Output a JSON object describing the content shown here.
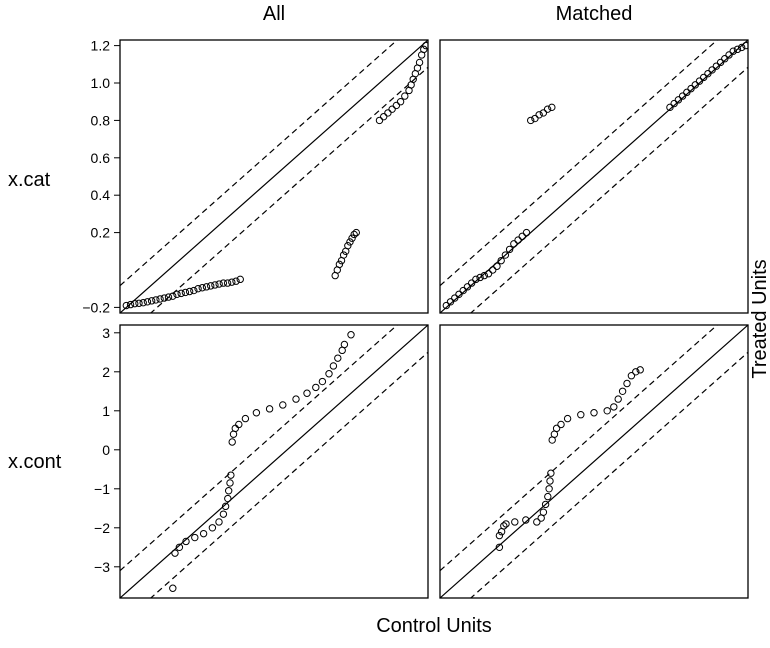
{
  "chart_data": {
    "type": "scatter",
    "column_titles": [
      "All",
      "Matched"
    ],
    "row_labels": [
      "x.cat",
      "x.cont"
    ],
    "xlabel": "Control Units",
    "ylabel": "Treated Units",
    "reference_lines": {
      "solid": "y = x",
      "dashed": "y = x ± 0.1·range"
    },
    "marker": "open-circle",
    "panels": [
      {
        "row": "x.cat",
        "column": "All",
        "range": [
          -0.23,
          1.23
        ],
        "ticks": [
          -0.2,
          0.2,
          0.4,
          0.6,
          0.8,
          1.0,
          1.2
        ],
        "tick_labels": [
          "−0.2",
          "0.2",
          "0.4",
          "0.6",
          "0.8",
          "1.0",
          "1.2"
        ],
        "points": [
          [
            -0.2,
            -0.19
          ],
          [
            -0.18,
            -0.185
          ],
          [
            -0.16,
            -0.18
          ],
          [
            -0.14,
            -0.178
          ],
          [
            -0.12,
            -0.175
          ],
          [
            -0.1,
            -0.17
          ],
          [
            -0.08,
            -0.165
          ],
          [
            -0.06,
            -0.16
          ],
          [
            -0.04,
            -0.155
          ],
          [
            -0.02,
            -0.15
          ],
          [
            0.0,
            -0.145
          ],
          [
            0.02,
            -0.14
          ],
          [
            0.04,
            -0.13
          ],
          [
            0.06,
            -0.125
          ],
          [
            0.08,
            -0.12
          ],
          [
            0.1,
            -0.115
          ],
          [
            0.12,
            -0.11
          ],
          [
            0.14,
            -0.1
          ],
          [
            0.16,
            -0.095
          ],
          [
            0.18,
            -0.09
          ],
          [
            0.2,
            -0.085
          ],
          [
            0.22,
            -0.08
          ],
          [
            0.24,
            -0.075
          ],
          [
            0.26,
            -0.07
          ],
          [
            0.28,
            -0.07
          ],
          [
            0.3,
            -0.065
          ],
          [
            0.32,
            -0.06
          ],
          [
            0.34,
            -0.05
          ],
          [
            0.79,
            -0.03
          ],
          [
            0.8,
            0.0
          ],
          [
            0.81,
            0.03
          ],
          [
            0.82,
            0.05
          ],
          [
            0.83,
            0.08
          ],
          [
            0.84,
            0.1
          ],
          [
            0.85,
            0.13
          ],
          [
            0.86,
            0.15
          ],
          [
            0.87,
            0.17
          ],
          [
            0.88,
            0.19
          ],
          [
            0.89,
            0.2
          ],
          [
            1.0,
            0.8
          ],
          [
            1.02,
            0.82
          ],
          [
            1.04,
            0.84
          ],
          [
            1.06,
            0.86
          ],
          [
            1.08,
            0.88
          ],
          [
            1.1,
            0.9
          ],
          [
            1.12,
            0.93
          ],
          [
            1.14,
            0.96
          ],
          [
            1.15,
            0.99
          ],
          [
            1.16,
            1.02
          ],
          [
            1.17,
            1.05
          ],
          [
            1.18,
            1.08
          ],
          [
            1.19,
            1.11
          ],
          [
            1.2,
            1.15
          ],
          [
            1.21,
            1.18
          ],
          [
            1.22,
            1.2
          ]
        ]
      },
      {
        "row": "x.cat",
        "column": "Matched",
        "range": [
          -0.23,
          1.23
        ],
        "ticks": [
          -0.2,
          0.2,
          0.4,
          0.6,
          0.8,
          1.0,
          1.2
        ],
        "tick_labels": [
          "−0.2",
          "0.2",
          "0.4",
          "0.6",
          "0.8",
          "1.0",
          "1.2"
        ],
        "points": [
          [
            -0.2,
            -0.19
          ],
          [
            -0.18,
            -0.17
          ],
          [
            -0.16,
            -0.15
          ],
          [
            -0.14,
            -0.13
          ],
          [
            -0.12,
            -0.11
          ],
          [
            -0.1,
            -0.09
          ],
          [
            -0.08,
            -0.07
          ],
          [
            -0.06,
            -0.05
          ],
          [
            -0.04,
            -0.04
          ],
          [
            -0.02,
            -0.03
          ],
          [
            0.0,
            -0.02
          ],
          [
            0.02,
            0.0
          ],
          [
            0.04,
            0.02
          ],
          [
            0.06,
            0.05
          ],
          [
            0.08,
            0.08
          ],
          [
            0.1,
            0.11
          ],
          [
            0.12,
            0.14
          ],
          [
            0.14,
            0.16
          ],
          [
            0.16,
            0.18
          ],
          [
            0.18,
            0.2
          ],
          [
            0.2,
            0.8
          ],
          [
            0.22,
            0.81
          ],
          [
            0.24,
            0.83
          ],
          [
            0.26,
            0.84
          ],
          [
            0.28,
            0.86
          ],
          [
            0.3,
            0.87
          ],
          [
            0.86,
            0.87
          ],
          [
            0.88,
            0.89
          ],
          [
            0.9,
            0.91
          ],
          [
            0.92,
            0.93
          ],
          [
            0.94,
            0.95
          ],
          [
            0.96,
            0.97
          ],
          [
            0.98,
            0.99
          ],
          [
            1.0,
            1.01
          ],
          [
            1.02,
            1.03
          ],
          [
            1.04,
            1.05
          ],
          [
            1.06,
            1.07
          ],
          [
            1.08,
            1.09
          ],
          [
            1.1,
            1.11
          ],
          [
            1.12,
            1.13
          ],
          [
            1.14,
            1.15
          ],
          [
            1.16,
            1.17
          ],
          [
            1.18,
            1.18
          ],
          [
            1.2,
            1.19
          ],
          [
            1.22,
            1.2
          ]
        ]
      },
      {
        "row": "x.cont",
        "column": "All",
        "range": [
          -3.8,
          3.2
        ],
        "ticks": [
          -3,
          -2,
          -1,
          0,
          1,
          2,
          3
        ],
        "tick_labels": [
          "−3",
          "−2",
          "−1",
          "0",
          "1",
          "2",
          "3"
        ],
        "points": [
          [
            -2.6,
            -3.55
          ],
          [
            -2.55,
            -2.65
          ],
          [
            -2.45,
            -2.5
          ],
          [
            -2.3,
            -2.35
          ],
          [
            -2.1,
            -2.25
          ],
          [
            -1.9,
            -2.15
          ],
          [
            -1.7,
            -2.0
          ],
          [
            -1.55,
            -1.85
          ],
          [
            -1.45,
            -1.65
          ],
          [
            -1.4,
            -1.45
          ],
          [
            -1.35,
            -1.25
          ],
          [
            -1.33,
            -1.05
          ],
          [
            -1.3,
            -0.85
          ],
          [
            -1.28,
            -0.65
          ],
          [
            -1.25,
            0.2
          ],
          [
            -1.22,
            0.4
          ],
          [
            -1.18,
            0.55
          ],
          [
            -1.1,
            0.65
          ],
          [
            -0.95,
            0.8
          ],
          [
            -0.7,
            0.95
          ],
          [
            -0.4,
            1.05
          ],
          [
            -0.1,
            1.15
          ],
          [
            0.2,
            1.3
          ],
          [
            0.45,
            1.45
          ],
          [
            0.65,
            1.6
          ],
          [
            0.8,
            1.75
          ],
          [
            0.95,
            1.95
          ],
          [
            1.05,
            2.15
          ],
          [
            1.15,
            2.35
          ],
          [
            1.25,
            2.55
          ],
          [
            1.3,
            2.7
          ],
          [
            1.45,
            2.95
          ]
        ]
      },
      {
        "row": "x.cont",
        "column": "Matched",
        "range": [
          -3.8,
          3.2
        ],
        "ticks": [
          -3,
          -2,
          -1,
          0,
          1,
          2,
          3
        ],
        "tick_labels": [
          "−3",
          "−2",
          "−1",
          "0",
          "1",
          "2",
          "3"
        ],
        "points": [
          [
            -2.45,
            -2.5
          ],
          [
            -2.45,
            -2.2
          ],
          [
            -2.4,
            -2.1
          ],
          [
            -2.35,
            -1.95
          ],
          [
            -2.3,
            -1.9
          ],
          [
            -2.1,
            -1.85
          ],
          [
            -1.85,
            -1.8
          ],
          [
            -1.6,
            -1.85
          ],
          [
            -1.5,
            -1.75
          ],
          [
            -1.45,
            -1.6
          ],
          [
            -1.4,
            -1.4
          ],
          [
            -1.35,
            -1.2
          ],
          [
            -1.32,
            -1.0
          ],
          [
            -1.3,
            -0.8
          ],
          [
            -1.28,
            -0.6
          ],
          [
            -1.25,
            0.25
          ],
          [
            -1.2,
            0.4
          ],
          [
            -1.15,
            0.55
          ],
          [
            -1.05,
            0.65
          ],
          [
            -0.9,
            0.8
          ],
          [
            -0.6,
            0.9
          ],
          [
            -0.3,
            0.95
          ],
          [
            0.0,
            1.0
          ],
          [
            0.15,
            1.1
          ],
          [
            0.25,
            1.3
          ],
          [
            0.35,
            1.5
          ],
          [
            0.45,
            1.7
          ],
          [
            0.55,
            1.9
          ],
          [
            0.65,
            2.0
          ],
          [
            0.75,
            2.05
          ]
        ]
      }
    ]
  }
}
